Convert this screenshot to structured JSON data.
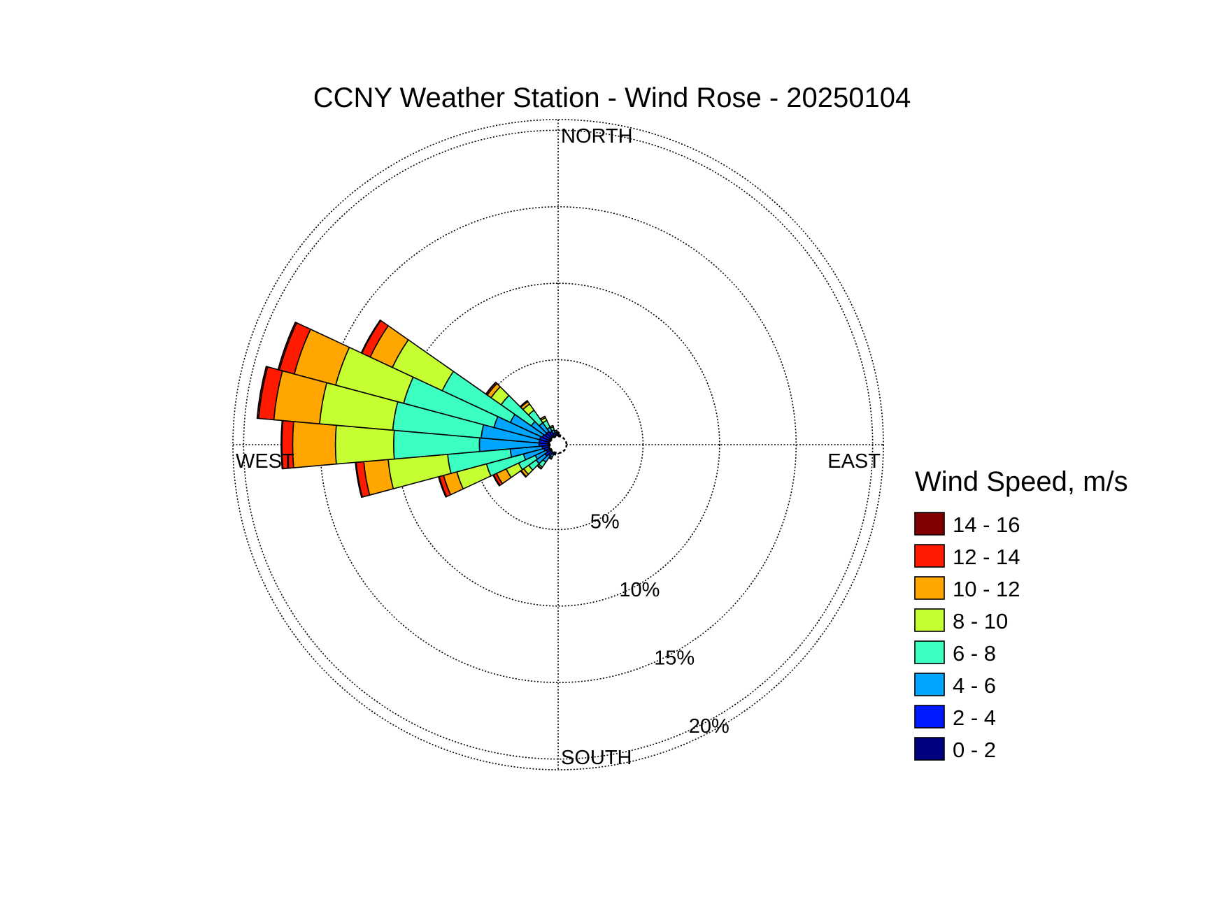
{
  "chart_data": {
    "type": "wind-rose",
    "title": "CCNY Weather Station - Wind Rose - 20250104",
    "directions": [
      "NORTH",
      "EAST",
      "SOUTH",
      "WEST"
    ],
    "radial_labels": [
      "5%",
      "10%",
      "15%",
      "20%"
    ],
    "radial_ticks": [
      5,
      10,
      15,
      20
    ],
    "rmax": 20.7,
    "legend_title": "Wind Speed, m/s",
    "bins": [
      {
        "label": "0 - 2",
        "color": "#00007f"
      },
      {
        "label": "2 - 4",
        "color": "#0019ff"
      },
      {
        "label": "4 - 6",
        "color": "#00a5ff"
      },
      {
        "label": "6 - 8",
        "color": "#3cffc2"
      },
      {
        "label": "8 - 10",
        "color": "#c5ff31"
      },
      {
        "label": "10 - 12",
        "color": "#ffa600"
      },
      {
        "label": "12 - 14",
        "color": "#ff1a00"
      },
      {
        "label": "14 - 16",
        "color": "#7f0000"
      }
    ],
    "sector_width_deg": 10,
    "sectors": [
      {
        "dir": 240,
        "values": [
          0.1,
          0.2,
          0.8,
          1.2,
          0.9,
          0.7,
          0.2,
          0.05
        ]
      },
      {
        "dir": 250,
        "values": [
          0.1,
          0.3,
          1.4,
          2.5,
          2.0,
          0.9,
          0.3,
          0.05
        ]
      },
      {
        "dir": 260,
        "values": [
          0.1,
          0.4,
          2.1,
          4.1,
          3.9,
          1.6,
          0.5,
          0.05
        ]
      },
      {
        "dir": 270,
        "values": [
          0.1,
          0.6,
          3.9,
          5.6,
          3.8,
          2.8,
          0.7,
          0.05
        ]
      },
      {
        "dir": 280,
        "values": [
          0.1,
          0.6,
          3.8,
          5.8,
          4.8,
          3.0,
          1.0,
          0.1
        ]
      },
      {
        "dir": 290,
        "values": [
          0.1,
          0.6,
          3.1,
          6.1,
          4.6,
          2.8,
          1.0,
          0.1
        ]
      },
      {
        "dir": 300,
        "values": [
          0.1,
          0.5,
          2.3,
          4.9,
          3.6,
          1.6,
          0.6,
          0.05
        ]
      },
      {
        "dir": 310,
        "values": [
          0.1,
          0.4,
          1.1,
          2.4,
          0.8,
          0.3,
          0.1,
          0.02
        ]
      },
      {
        "dir": 320,
        "values": [
          0.1,
          0.4,
          0.7,
          1.0,
          0.5,
          0.2,
          0.05,
          0.02
        ]
      },
      {
        "dir": 330,
        "values": [
          0.1,
          0.3,
          0.3,
          0.5,
          0.2,
          0.1,
          0.0,
          0.0
        ]
      },
      {
        "dir": 340,
        "values": [
          0.05,
          0.2,
          0.2,
          0.2,
          0.1,
          0.0,
          0.0,
          0.0
        ]
      },
      {
        "dir": 350,
        "values": [
          0.05,
          0.1,
          0.1,
          0.1,
          0.05,
          0.0,
          0.0,
          0.0
        ]
      },
      {
        "dir": 0,
        "values": [
          0.05,
          0.1,
          0.05,
          0.05,
          0.0,
          0.0,
          0.0,
          0.0
        ]
      },
      {
        "dir": 10,
        "values": [
          0.05,
          0.05,
          0.0,
          0.0,
          0.0,
          0.0,
          0.0,
          0.0
        ]
      },
      {
        "dir": 220,
        "values": [
          0.05,
          0.3,
          0.5,
          0.4,
          0.1,
          0.05,
          0.0,
          0.0
        ]
      },
      {
        "dir": 230,
        "values": [
          0.1,
          0.4,
          0.7,
          0.6,
          0.4,
          0.2,
          0.05,
          0.0
        ]
      },
      {
        "dir": 210,
        "values": [
          0.05,
          0.1,
          0.2,
          0.1,
          0.05,
          0.0,
          0.0,
          0.0
        ]
      },
      {
        "dir": 200,
        "values": [
          0.05,
          0.05,
          0.05,
          0.0,
          0.0,
          0.0,
          0.0,
          0.0
        ]
      }
    ]
  }
}
